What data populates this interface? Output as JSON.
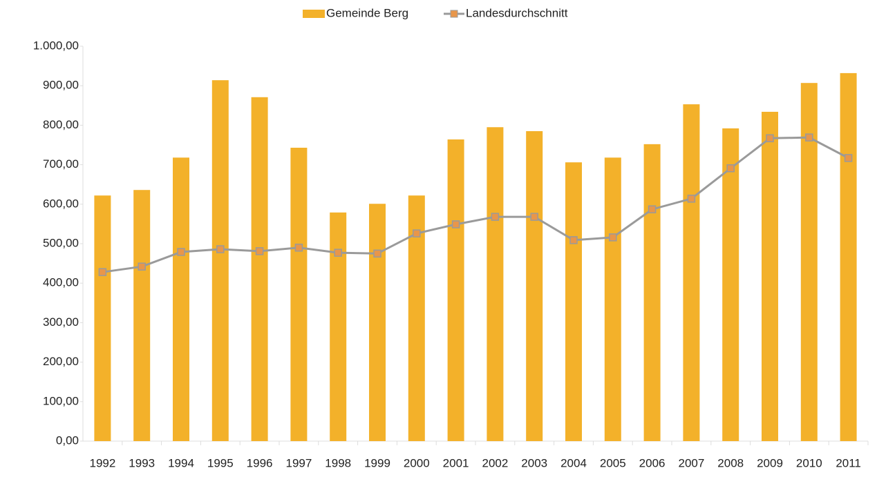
{
  "chart_data": {
    "type": "bar",
    "categories": [
      "1992",
      "1993",
      "1994",
      "1995",
      "1996",
      "1997",
      "1998",
      "1999",
      "2000",
      "2001",
      "2002",
      "2003",
      "2004",
      "2005",
      "2006",
      "2007",
      "2008",
      "2009",
      "2010",
      "2011"
    ],
    "series": [
      {
        "name": "Gemeinde Berg",
        "type": "bar",
        "color": "#f3b12a",
        "values": [
          622,
          636,
          718,
          914,
          871,
          743,
          579,
          601,
          622,
          764,
          795,
          785,
          706,
          718,
          752,
          853,
          792,
          834,
          907,
          932
        ]
      },
      {
        "name": "Landesdurchschnitt",
        "type": "line",
        "color": "#9a9a9a",
        "marker_color": "#e8964a",
        "values": [
          428,
          442,
          479,
          486,
          481,
          490,
          477,
          475,
          526,
          549,
          568,
          568,
          509,
          516,
          587,
          614,
          691,
          767,
          769,
          717
        ]
      }
    ],
    "ylim": [
      0,
      1000
    ],
    "yticks": [
      {
        "value": 0,
        "label": "0,00"
      },
      {
        "value": 100,
        "label": "100,00"
      },
      {
        "value": 200,
        "label": "200,00"
      },
      {
        "value": 300,
        "label": "300,00"
      },
      {
        "value": 400,
        "label": "400,00"
      },
      {
        "value": 500,
        "label": "500,00"
      },
      {
        "value": 600,
        "label": "600,00"
      },
      {
        "value": 700,
        "label": "700,00"
      },
      {
        "value": 800,
        "label": "800,00"
      },
      {
        "value": 900,
        "label": "900,00"
      },
      {
        "value": 1000,
        "label": "1.000,00"
      }
    ],
    "grid": false,
    "legend": "top"
  }
}
